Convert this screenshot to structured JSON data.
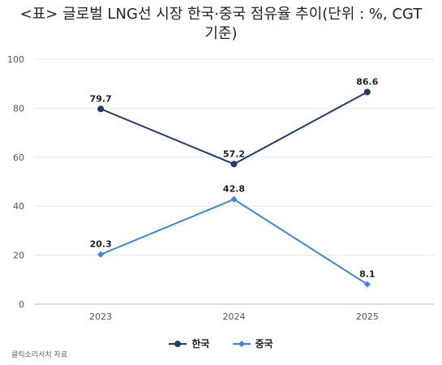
{
  "chart_data": {
    "type": "line",
    "title_line1": "<표> 글로벌 LNG선 시장 한국·중국 점유율 추이(단위 : %, CGT",
    "title_line2": "기준)",
    "x": [
      "2023",
      "2024",
      "2025"
    ],
    "yticks": [
      "0",
      "20",
      "40",
      "60",
      "80",
      "100"
    ],
    "ylim": [
      0,
      100
    ],
    "grid": true,
    "legend_position": "bottom",
    "series": [
      {
        "name": "한국",
        "values": [
          79.7,
          57.2,
          86.6
        ],
        "labels": [
          "79.7",
          "57.2",
          "86.6"
        ],
        "color": "#1f3c6b",
        "marker": "circle"
      },
      {
        "name": "중국",
        "values": [
          20.3,
          42.8,
          8.1
        ],
        "labels": [
          "20.3",
          "42.8",
          "8.1"
        ],
        "color": "#3b86d6",
        "marker": "diamond"
      }
    ]
  },
  "source": "클릭소리서치 자료"
}
